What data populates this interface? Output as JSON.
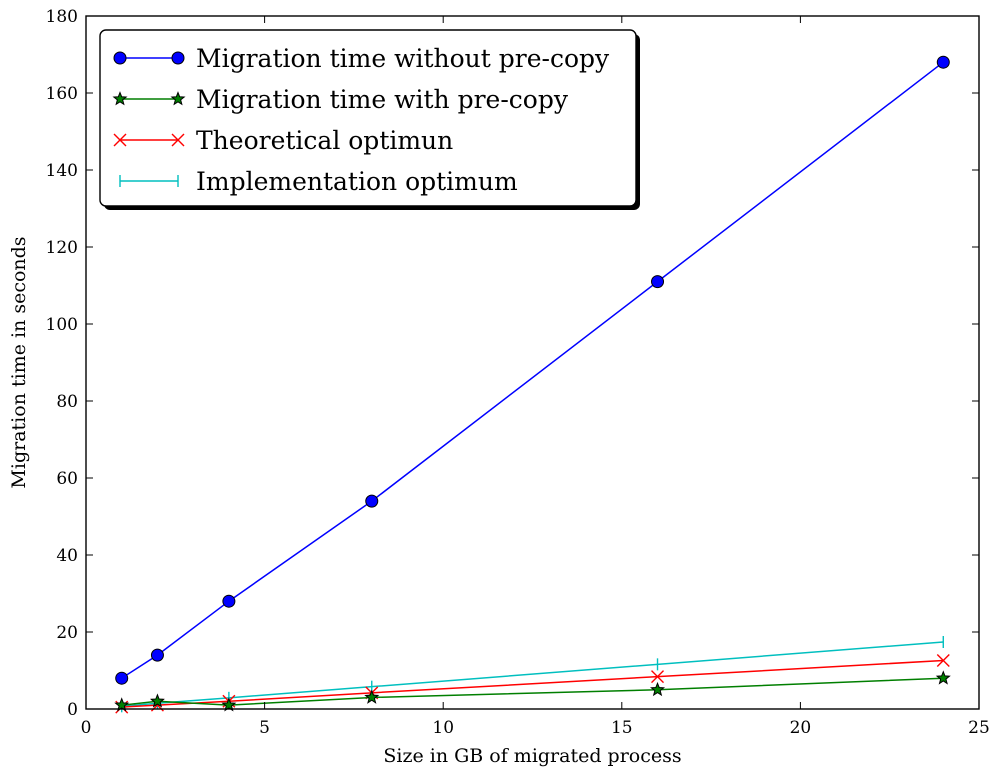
{
  "chart_data": {
    "type": "line",
    "title": "",
    "xlabel": "Size in GB of migrated process",
    "ylabel": "Migration time in seconds",
    "xlim": [
      0,
      25
    ],
    "ylim": [
      0,
      180
    ],
    "xticks": [
      0,
      5,
      10,
      15,
      20,
      25
    ],
    "yticks": [
      0,
      20,
      40,
      60,
      80,
      100,
      120,
      140,
      160,
      180
    ],
    "grid": false,
    "legend_position": "top-left",
    "series": [
      {
        "name": "Migration time without pre-copy",
        "color": "#0000ff",
        "marker": "circle",
        "x": [
          1,
          2,
          4,
          8,
          16,
          24
        ],
        "y": [
          8,
          14,
          28,
          54,
          111,
          168
        ]
      },
      {
        "name": "Migration time with pre-copy",
        "color": "#007f00",
        "marker": "star",
        "x": [
          1,
          2,
          4,
          8,
          16,
          24
        ],
        "y": [
          1,
          2,
          1,
          3,
          5,
          8
        ]
      },
      {
        "name": "Theoretical optimun",
        "color": "#ff0000",
        "marker": "x",
        "x": [
          1,
          2,
          4,
          8,
          16,
          24
        ],
        "y": [
          0.5,
          1,
          2,
          4.2,
          8.4,
          12.6
        ]
      },
      {
        "name": "Implementation optimum",
        "color": "#00bfbf",
        "marker": "vline",
        "x": [
          1,
          2,
          4,
          8,
          16,
          24
        ],
        "y": [
          0.7,
          1.5,
          2.9,
          5.8,
          11.6,
          17.4
        ]
      }
    ]
  }
}
